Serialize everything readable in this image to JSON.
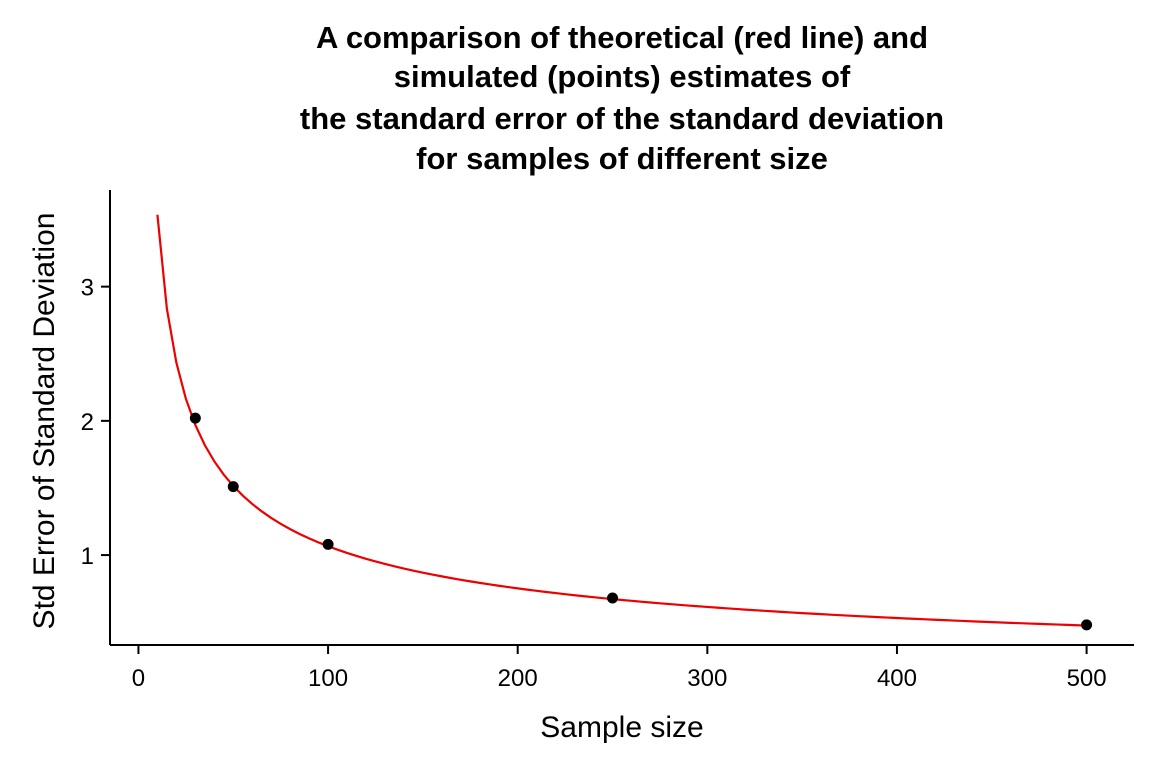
{
  "chart_data": {
    "type": "line",
    "title_lines": [
      "A comparison of theoretical (red line) and",
      "simulated (points) estimates of",
      "the standard error of the standard deviation",
      "for samples of different size"
    ],
    "xlabel": "Sample size",
    "ylabel": "Std Error of Standard Deviation",
    "xlim": [
      -15,
      525
    ],
    "ylim": [
      0.33,
      3.72
    ],
    "x_ticks": [
      0,
      100,
      200,
      300,
      400,
      500
    ],
    "x_tick_labels": [
      "0",
      "100",
      "200",
      "300",
      "400",
      "500"
    ],
    "y_ticks": [
      1,
      2,
      3
    ],
    "y_tick_labels": [
      "1",
      "2",
      "3"
    ],
    "grid": false,
    "legend": "none",
    "colors": {
      "line": "#ee0000",
      "points": "#000000",
      "axis": "#000000"
    },
    "series": [
      {
        "name": "theoretical",
        "kind": "line",
        "formula": "y = 15 / sqrt(2 * (n - 1))",
        "x_range": [
          10,
          500
        ],
        "x_step": 5
      },
      {
        "name": "simulated",
        "kind": "scatter",
        "x": [
          30,
          50,
          100,
          250,
          500
        ],
        "y": [
          2.02,
          1.51,
          1.08,
          0.68,
          0.48
        ]
      }
    ]
  }
}
